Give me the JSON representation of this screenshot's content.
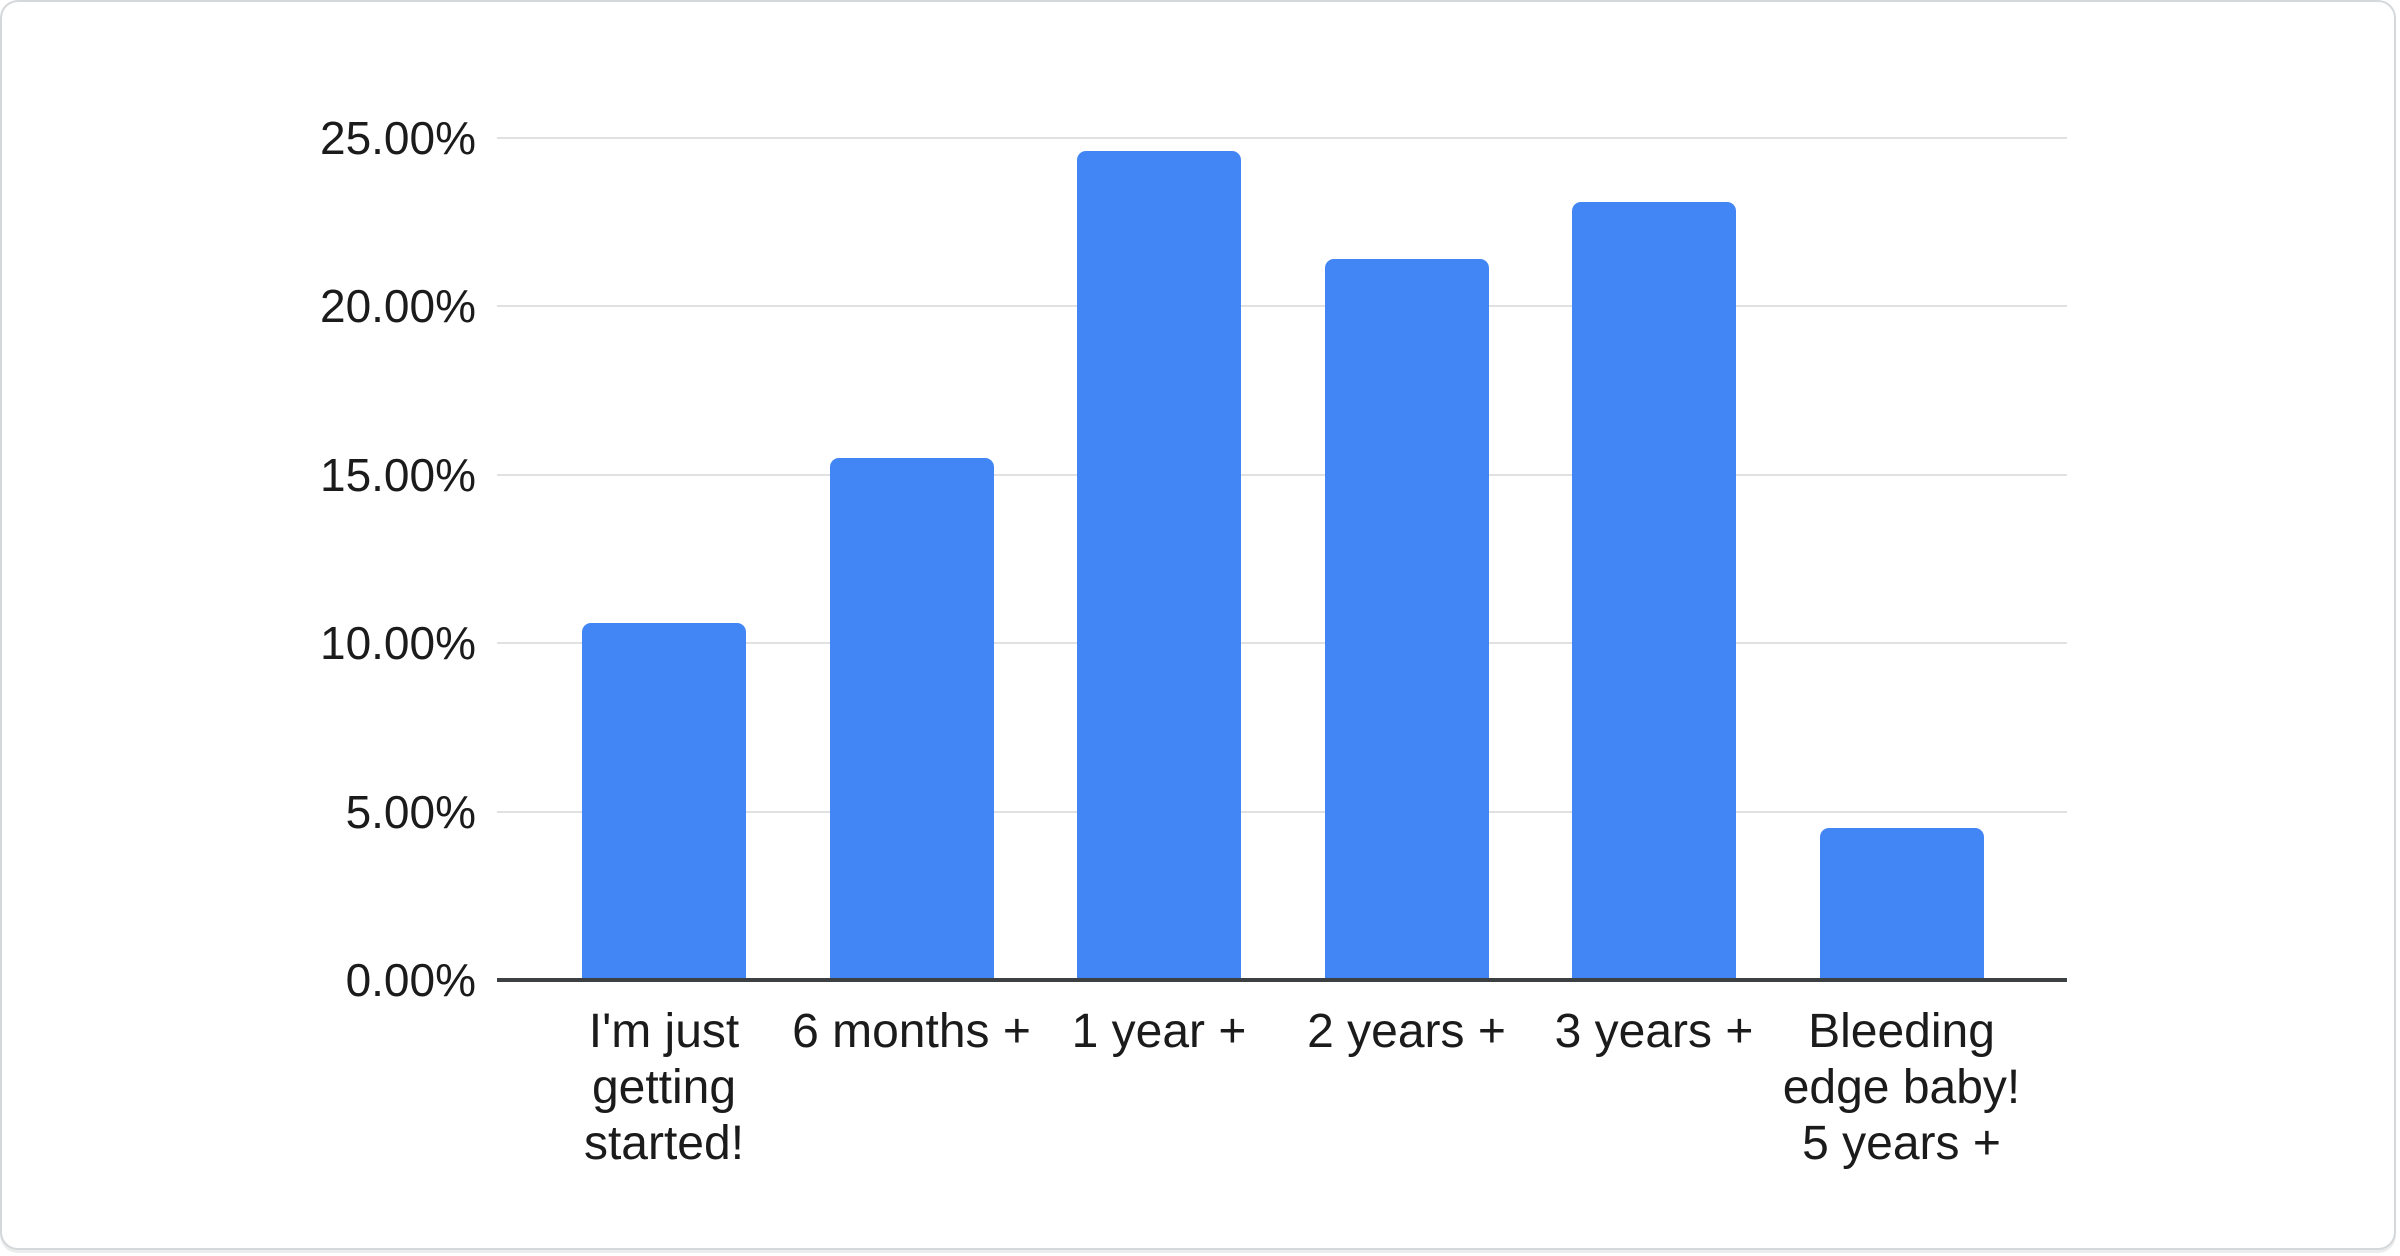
{
  "chart_data": {
    "type": "bar",
    "title": "",
    "xlabel": "",
    "ylabel": "",
    "unit": "%",
    "categories": [
      "I'm just getting started!",
      "6 months +",
      "1 year +",
      "2 years +",
      "3 years +",
      "Bleeding edge baby! 5 years +"
    ],
    "category_lines": [
      [
        "I'm just",
        "getting",
        "started!"
      ],
      [
        "6 months +"
      ],
      [
        "1 year +"
      ],
      [
        "2 years +"
      ],
      [
        "3 years +"
      ],
      [
        "Bleeding",
        "edge baby!",
        "5 years +"
      ]
    ],
    "values": [
      10.6,
      15.5,
      24.6,
      21.4,
      23.1,
      4.5
    ],
    "ylim": [
      0,
      25
    ],
    "y_ticks": [
      {
        "value": 0,
        "label": "0.00%"
      },
      {
        "value": 5,
        "label": "5.00%"
      },
      {
        "value": 10,
        "label": "10.00%"
      },
      {
        "value": 15,
        "label": "15.00%"
      },
      {
        "value": 20,
        "label": "20.00%"
      },
      {
        "value": 25,
        "label": "25.00%"
      }
    ],
    "grid": true,
    "legend_position": "none",
    "colors": {
      "bar": "#4285F4",
      "gridline": "#e0e1e3",
      "axis_line": "#3c4043",
      "label_text": "#1b1b1b"
    }
  }
}
